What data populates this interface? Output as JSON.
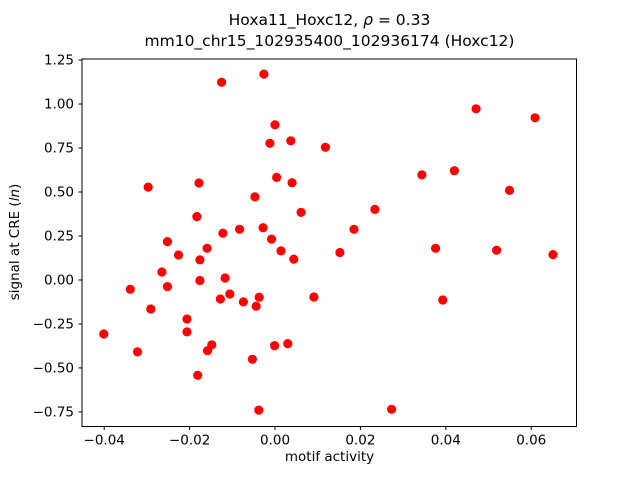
{
  "figure": {
    "background": "#ffffff"
  },
  "chart_data": {
    "type": "scatter",
    "title_line1": {
      "prefix": "Hoxa11_Hoxc12, ",
      "rho": "ρ",
      "suffix": " = 0.33"
    },
    "title_line2": "mm10_chr15_102935400_102936174 (Hoxc12)",
    "xlabel": "motif activity",
    "ylabel": {
      "prefix": "signal at CRE (",
      "italic": "ln",
      "suffix": ")"
    },
    "legend": "none",
    "grid": false,
    "marker": {
      "shape": "circle",
      "color": "#ff0000",
      "radius_px": 4.6
    },
    "xlim": [
      -0.0452,
      0.0706
    ],
    "ylim": [
      -0.833,
      1.256
    ],
    "xticks": {
      "values": [
        -0.04,
        -0.02,
        0.0,
        0.02,
        0.04,
        0.06
      ],
      "labels": [
        "−0.04",
        "−0.02",
        "0.00",
        "0.02",
        "0.04",
        "0.06"
      ]
    },
    "yticks": {
      "values": [
        1.25,
        1.0,
        0.75,
        0.5,
        0.25,
        0.0,
        -0.25,
        -0.5,
        -0.75
      ],
      "labels": [
        "1.25",
        "1.00",
        "0.75",
        "0.50",
        "0.25",
        "0.00",
        "−0.25",
        "−0.50",
        "−0.75"
      ]
    },
    "points": [
      [
        -0.0125,
        1.124
      ],
      [
        -0.0026,
        1.17
      ],
      [
        0.0,
        0.882
      ],
      [
        -0.0012,
        0.777
      ],
      [
        0.0037,
        0.791
      ],
      [
        0.0118,
        0.754
      ],
      [
        -0.0297,
        0.528
      ],
      [
        -0.0178,
        0.551
      ],
      [
        0.0004,
        0.583
      ],
      [
        0.004,
        0.553
      ],
      [
        -0.0047,
        0.472
      ],
      [
        0.0061,
        0.384
      ],
      [
        -0.0183,
        0.36
      ],
      [
        -0.0122,
        0.266
      ],
      [
        -0.0083,
        0.288
      ],
      [
        -0.0028,
        0.297
      ],
      [
        -0.0008,
        0.232
      ],
      [
        -0.0252,
        0.218
      ],
      [
        0.0471,
        0.973
      ],
      [
        0.0609,
        0.922
      ],
      [
        0.0344,
        0.597
      ],
      [
        0.042,
        0.621
      ],
      [
        0.0549,
        0.509
      ],
      [
        0.0234,
        0.401
      ],
      [
        0.0185,
        0.288
      ],
      [
        -0.0226,
        0.142
      ],
      [
        -0.0159,
        0.18
      ],
      [
        -0.0176,
        0.114
      ],
      [
        0.0014,
        0.165
      ],
      [
        0.0044,
        0.118
      ],
      [
        -0.0265,
        0.045
      ],
      [
        -0.0252,
        -0.038
      ],
      [
        -0.0339,
        -0.053
      ],
      [
        -0.0176,
        -0.003
      ],
      [
        -0.0117,
        0.011
      ],
      [
        -0.0128,
        -0.108
      ],
      [
        -0.0106,
        -0.08
      ],
      [
        -0.0074,
        -0.125
      ],
      [
        -0.0037,
        -0.098
      ],
      [
        -0.0044,
        -0.149
      ],
      [
        0.0091,
        -0.097
      ],
      [
        -0.0291,
        -0.165
      ],
      [
        -0.0206,
        -0.222
      ],
      [
        -0.0206,
        -0.295
      ],
      [
        -0.0401,
        -0.307
      ],
      [
        -0.0322,
        -0.409
      ],
      [
        -0.0148,
        -0.369
      ],
      [
        -0.0158,
        -0.402
      ],
      [
        -0.0053,
        -0.451
      ],
      [
        -0.0001,
        -0.373
      ],
      [
        0.003,
        -0.362
      ],
      [
        -0.0181,
        -0.542
      ],
      [
        -0.0038,
        -0.74
      ],
      [
        0.0152,
        0.156
      ],
      [
        0.0376,
        0.18
      ],
      [
        0.0393,
        -0.114
      ],
      [
        0.0519,
        0.169
      ],
      [
        0.0651,
        0.144
      ],
      [
        0.0273,
        -0.735
      ]
    ]
  }
}
